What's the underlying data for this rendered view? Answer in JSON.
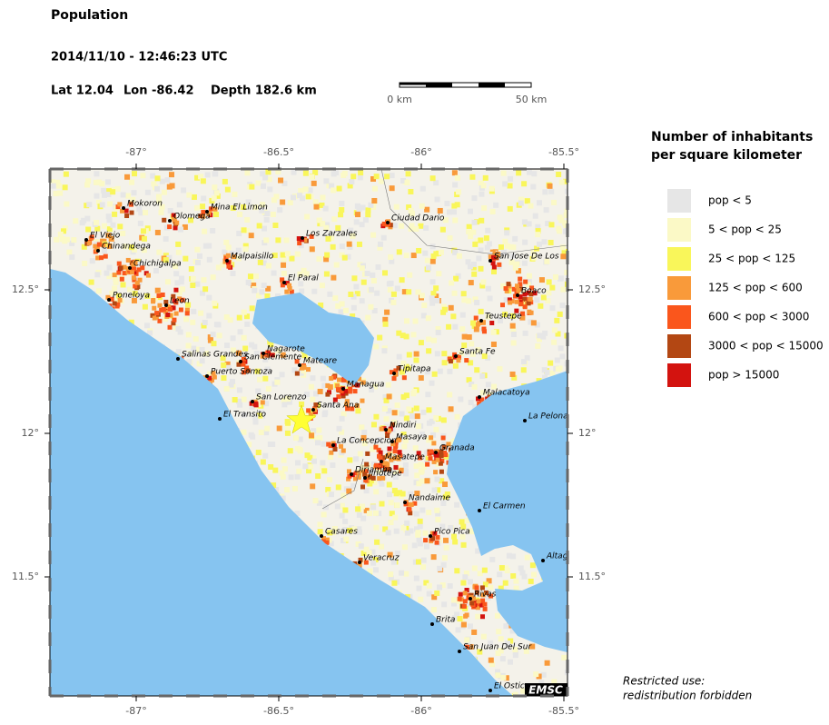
{
  "header": {
    "title": "Population",
    "datetime": "2014/11/10 - 12:46:23 UTC",
    "lat": "Lat 12.04",
    "lon": "Lon -86.42",
    "depth": "Depth 182.6 km"
  },
  "scale": {
    "start": "0 km",
    "end": "50 km"
  },
  "map": {
    "lon_ticks": [
      {
        "value": -87,
        "label": "-87°"
      },
      {
        "value": -86.5,
        "label": "-86.5°"
      },
      {
        "value": -86,
        "label": "-86°"
      },
      {
        "value": -85.5,
        "label": "-85.5°"
      }
    ],
    "lat_ticks": [
      {
        "value": 12.5,
        "label": "12.5°"
      },
      {
        "value": 12,
        "label": "12°"
      },
      {
        "value": 11.5,
        "label": "11.5°"
      }
    ],
    "cities": [
      "Mokoron",
      "Mina El Limon",
      "Olomega",
      "El Viejo",
      "Chinandega",
      "Chichigalpa",
      "Malpaisillo",
      "Los Zarzales",
      "Ciudad Dario",
      "San Jose De Los",
      "El Paral",
      "Poneloya",
      "Leon",
      "Boaco",
      "Teustepe",
      "Santa Fe",
      "Salinas Grandes",
      "Nagarote",
      "San Clemente",
      "Mateare",
      "Tipitapa",
      "Puerto Somoza",
      "Managua",
      "Malacatoya",
      "San Lorenzo",
      "Santa Ana",
      "El Transito",
      "La Pelona",
      "Nindiri",
      "La Concepcion",
      "Masaya",
      "Granada",
      "Masatepe",
      "Diriamba",
      "Jinotepe",
      "Nandaime",
      "El Carmen",
      "Casares",
      "Pico Pica",
      "Veracruz",
      "Altag",
      "Rivas",
      "Brita",
      "San Juan Del Sur",
      "El Ostic"
    ],
    "badge": "EMSC"
  },
  "legend": {
    "title": [
      "Number of inhabitants",
      "per square kilometer"
    ],
    "items": [
      {
        "label": "pop < 5",
        "color": "#e6e6e6"
      },
      {
        "label": "5 < pop < 25",
        "color": "#fbf9c6"
      },
      {
        "label": "25 < pop < 125",
        "color": "#f9f65a"
      },
      {
        "label": "125 < pop < 600",
        "color": "#f99a3a"
      },
      {
        "label": "600 < pop < 3000",
        "color": "#fa561c"
      },
      {
        "label": "3000 < pop < 15000",
        "color": "#b34713"
      },
      {
        "label": "pop > 15000",
        "color": "#d3130f"
      }
    ]
  },
  "notice": [
    "Restricted use:",
    "redistribution forbidden"
  ]
}
